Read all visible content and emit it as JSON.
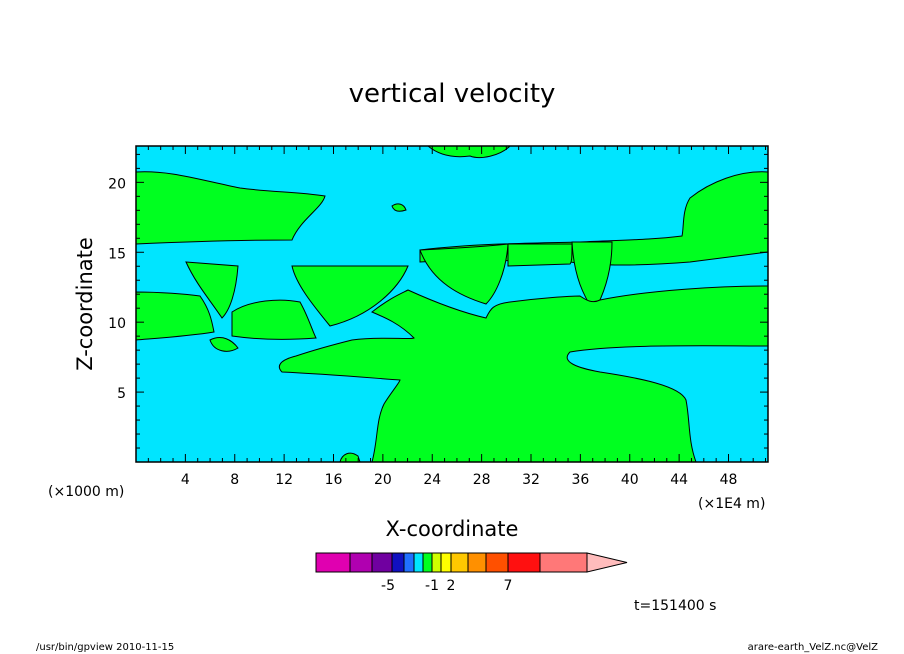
{
  "chart_data": {
    "type": "heatmap",
    "title": "vertical velocity",
    "xlabel": "X-coordinate",
    "ylabel": "Z-coordinate",
    "x_unit_left": "(×1000 m)",
    "x_unit_right": "(×1E4 m)",
    "x_ticks": [
      "4",
      "8",
      "12",
      "16",
      "20",
      "24",
      "28",
      "32",
      "36",
      "40",
      "44",
      "48"
    ],
    "y_ticks": [
      "5",
      "10",
      "15",
      "20"
    ],
    "xlim": [
      0,
      51.2
    ],
    "ylim": [
      0,
      22.6
    ],
    "grid": false,
    "colorbar": {
      "labels": [
        "-5",
        "-1",
        "2",
        "7"
      ],
      "colors": [
        "#e000b0",
        "#b000b0",
        "#7000a0",
        "#1010c0",
        "#2070ff",
        "#00e5ff",
        "#00ff20",
        "#d0ff00",
        "#ffff00",
        "#ffc800",
        "#ff9000",
        "#ff5000",
        "#ff1010",
        "#ff7878",
        "#ffbcbc"
      ]
    },
    "fill_colors": {
      "negative": "#00e5ff",
      "positive": "#00ff20"
    },
    "time_label": "t=151400 s"
  },
  "footer": {
    "left": "/usr/bin/gpview   2010-11-15",
    "right": "arare-earth_VelZ.nc@VelZ"
  }
}
